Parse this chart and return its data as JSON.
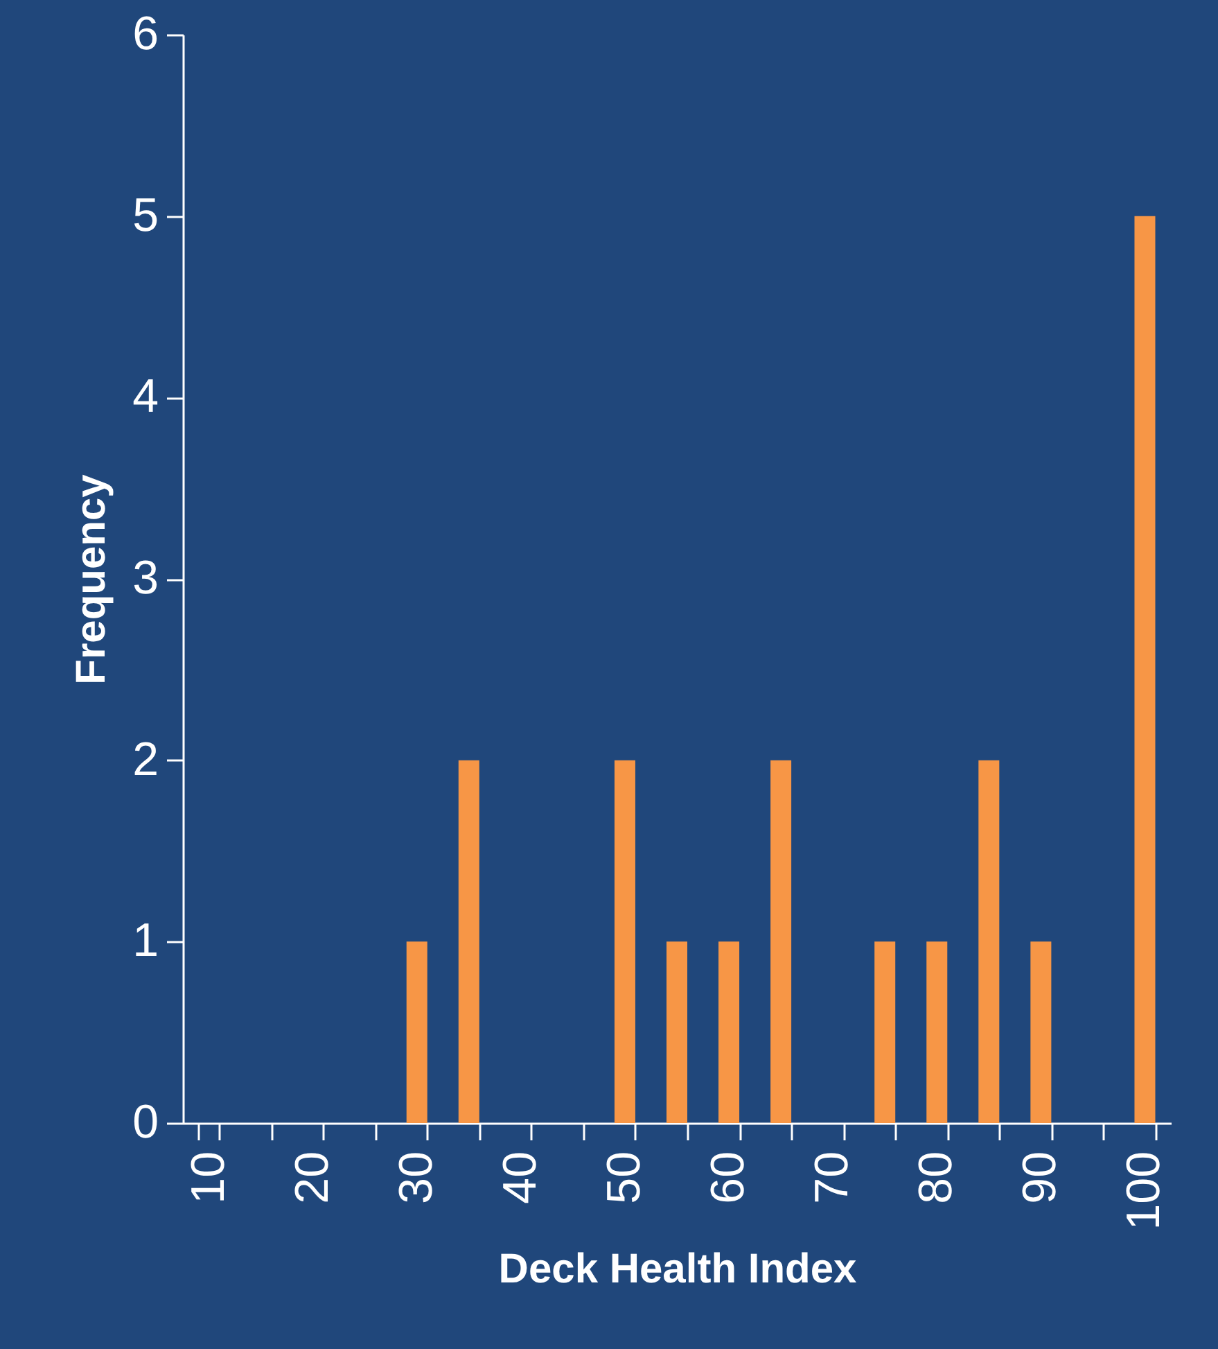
{
  "chart_data": {
    "type": "bar",
    "xlabel": "Deck Health  Index",
    "ylabel": "Frequency",
    "categories": [
      "10",
      null,
      "20",
      null,
      "30",
      null,
      "40",
      null,
      "50",
      null,
      "60",
      null,
      "70",
      null,
      "80",
      null,
      "90",
      null,
      "100"
    ],
    "values": [
      0,
      0,
      0,
      0,
      1,
      2,
      0,
      0,
      2,
      1,
      1,
      2,
      0,
      1,
      1,
      2,
      1,
      0,
      5
    ],
    "color": "#f79646",
    "ylim": [
      0,
      6
    ],
    "yticks": [
      0,
      1,
      2,
      3,
      4,
      5,
      6
    ],
    "grid": false
  }
}
